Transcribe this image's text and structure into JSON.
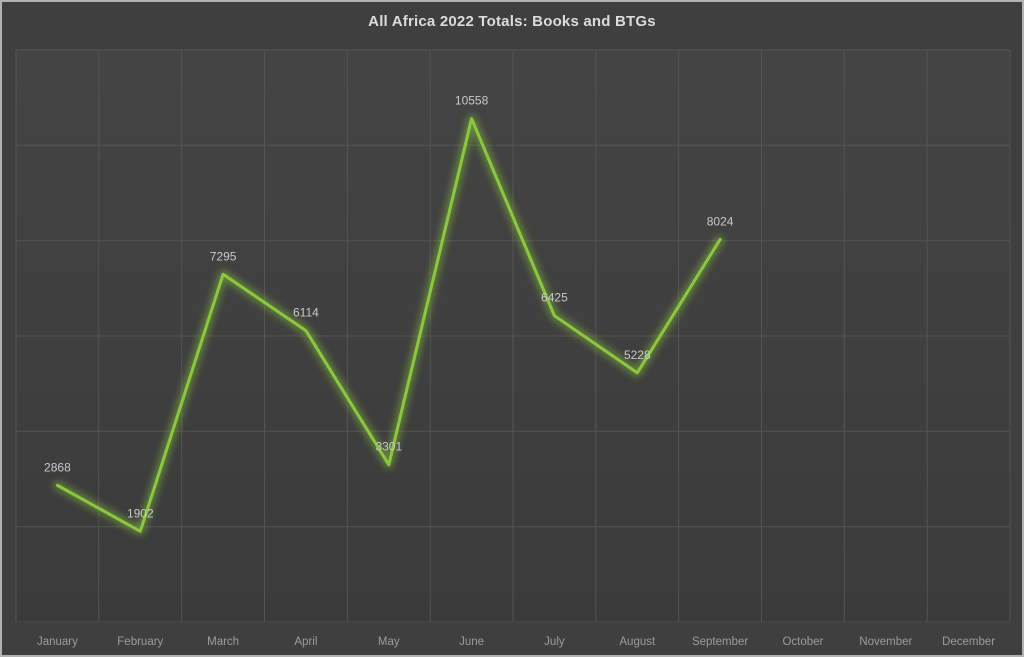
{
  "window": {
    "background_color": "#3F3F3F",
    "border_color": "#B2B2B2"
  },
  "chart_data": {
    "type": "line",
    "title": "All Africa 2022 Totals: Books and BTGs",
    "categories": [
      "January",
      "February",
      "March",
      "April",
      "May",
      "June",
      "July",
      "August",
      "September",
      "October",
      "November",
      "December"
    ],
    "values": [
      2868,
      1902,
      7295,
      6114,
      3301,
      10558,
      6425,
      5228,
      8024,
      null,
      null,
      null
    ],
    "data_labels": [
      "2868",
      "1902",
      "7295",
      "6114",
      "3301",
      "10558",
      "6425",
      "5228",
      "8024"
    ],
    "xlabel": "",
    "ylabel": "",
    "ylim": [
      0,
      12000
    ],
    "y_grid_step": 2000,
    "grid": "both",
    "y_axis_tick_labels_visible": false,
    "legend_position": "none",
    "colors": {
      "line": "#8DC63F",
      "line_glow": "#85C437",
      "gridline": "#545454",
      "baseline_gridline": "#4A4A4A",
      "title_text": "#DCDCDC",
      "data_label_text": "#C9C9C9",
      "axis_label_text": "#9C9C9C",
      "plot_fill_top": "#444444",
      "plot_fill_bottom": "#3B3B3B"
    }
  }
}
